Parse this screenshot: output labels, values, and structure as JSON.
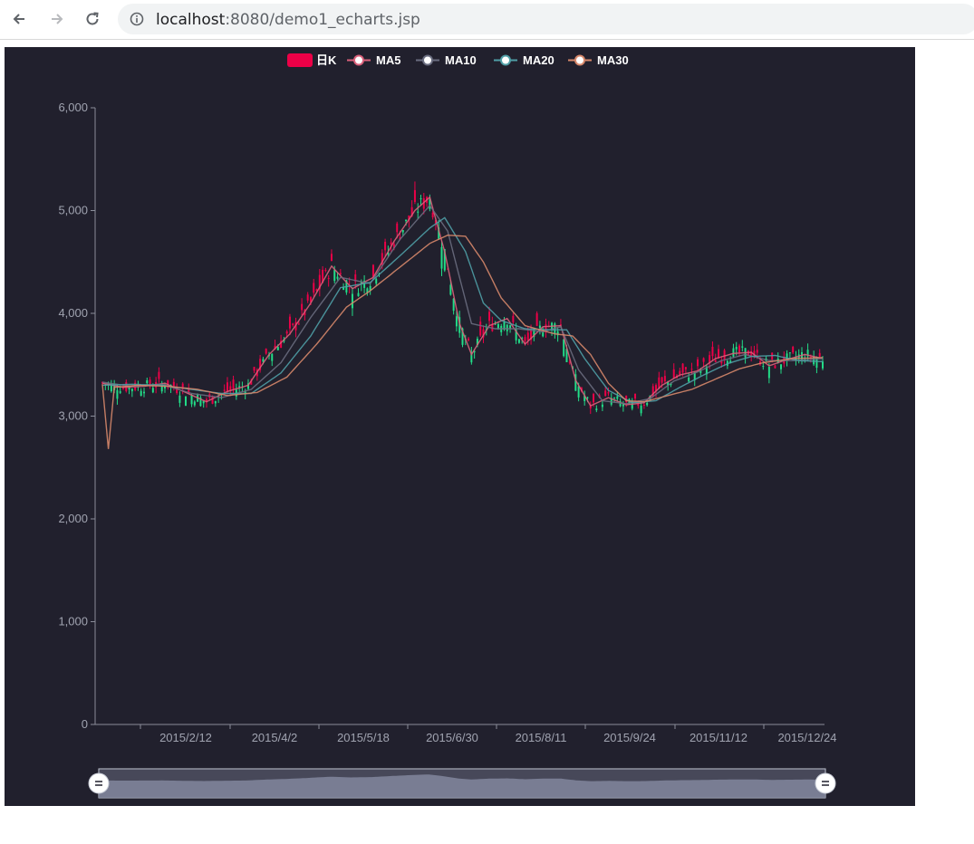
{
  "browser": {
    "back_icon": "arrow-left-icon",
    "forward_icon": "arrow-right-icon",
    "reload_icon": "reload-icon",
    "info_icon": "info-icon",
    "url_host": "localhost",
    "url_path": ":8080/demo1_echarts.jsp"
  },
  "colors": {
    "background": "#21202d",
    "candle_up": "#ec0047",
    "candle_down": "#22dd88",
    "ma5": "#d9607a",
    "ma10": "#6a6d80",
    "ma20": "#4f9ea6",
    "ma30": "#d6876a",
    "axis": "#8a8d99"
  },
  "chart_data": {
    "type": "line",
    "subtype": "candlestick",
    "legend": [
      "日K",
      "MA5",
      "MA10",
      "MA20",
      "MA30"
    ],
    "legend_position": "top-center",
    "x_tick_labels": [
      "2015/2/12",
      "2015/4/2",
      "2015/5/18",
      "2015/6/30",
      "2015/8/11",
      "2015/9/24",
      "2015/11/12",
      "2015/12/24"
    ],
    "y_tick_labels": [
      "0",
      "1,000",
      "2,000",
      "3,000",
      "4,000",
      "5,000",
      "6,000"
    ],
    "ylim": [
      0,
      6000
    ],
    "grid": false,
    "x_start": "2015/1/5",
    "x_end": "2015/12/31",
    "series": [
      {
        "name": "MA5",
        "key_points": [
          [
            0,
            3320
          ],
          [
            7,
            3280
          ],
          [
            14,
            3290
          ],
          [
            21,
            3320
          ],
          [
            28,
            3230
          ],
          [
            35,
            3140
          ],
          [
            42,
            3240
          ],
          [
            49,
            3300
          ],
          [
            56,
            3600
          ],
          [
            63,
            3800
          ],
          [
            70,
            4100
          ],
          [
            77,
            4460
          ],
          [
            84,
            4240
          ],
          [
            91,
            4350
          ],
          [
            98,
            4700
          ],
          [
            105,
            5000
          ],
          [
            110,
            5130
          ],
          [
            115,
            4600
          ],
          [
            120,
            3900
          ],
          [
            124,
            3600
          ],
          [
            130,
            3880
          ],
          [
            136,
            3950
          ],
          [
            142,
            3700
          ],
          [
            148,
            3870
          ],
          [
            154,
            3880
          ],
          [
            159,
            3350
          ],
          [
            164,
            3100
          ],
          [
            170,
            3180
          ],
          [
            176,
            3110
          ],
          [
            182,
            3130
          ],
          [
            188,
            3300
          ],
          [
            194,
            3400
          ],
          [
            200,
            3440
          ],
          [
            206,
            3560
          ],
          [
            212,
            3610
          ],
          [
            218,
            3620
          ],
          [
            224,
            3490
          ],
          [
            230,
            3550
          ],
          [
            236,
            3600
          ],
          [
            242,
            3560
          ]
        ]
      },
      {
        "name": "MA10",
        "key_points": [
          [
            0,
            3330
          ],
          [
            10,
            3290
          ],
          [
            20,
            3310
          ],
          [
            30,
            3220
          ],
          [
            40,
            3180
          ],
          [
            50,
            3260
          ],
          [
            60,
            3520
          ],
          [
            70,
            3960
          ],
          [
            80,
            4350
          ],
          [
            90,
            4290
          ],
          [
            100,
            4720
          ],
          [
            110,
            5050
          ],
          [
            116,
            4800
          ],
          [
            124,
            3900
          ],
          [
            132,
            3850
          ],
          [
            140,
            3850
          ],
          [
            148,
            3820
          ],
          [
            154,
            3870
          ],
          [
            160,
            3450
          ],
          [
            168,
            3150
          ],
          [
            176,
            3120
          ],
          [
            184,
            3170
          ],
          [
            192,
            3340
          ],
          [
            200,
            3430
          ],
          [
            208,
            3540
          ],
          [
            216,
            3600
          ],
          [
            224,
            3540
          ],
          [
            232,
            3540
          ],
          [
            242,
            3560
          ]
        ]
      },
      {
        "name": "MA20",
        "key_points": [
          [
            0,
            3300
          ],
          [
            10,
            3310
          ],
          [
            20,
            3300
          ],
          [
            30,
            3260
          ],
          [
            40,
            3220
          ],
          [
            50,
            3220
          ],
          [
            60,
            3420
          ],
          [
            70,
            3780
          ],
          [
            80,
            4250
          ],
          [
            90,
            4300
          ],
          [
            100,
            4560
          ],
          [
            110,
            4830
          ],
          [
            115,
            4930
          ],
          [
            122,
            4600
          ],
          [
            128,
            4100
          ],
          [
            134,
            3930
          ],
          [
            142,
            3850
          ],
          [
            150,
            3840
          ],
          [
            156,
            3840
          ],
          [
            162,
            3560
          ],
          [
            170,
            3250
          ],
          [
            178,
            3130
          ],
          [
            186,
            3150
          ],
          [
            194,
            3280
          ],
          [
            202,
            3400
          ],
          [
            210,
            3510
          ],
          [
            218,
            3580
          ],
          [
            226,
            3590
          ],
          [
            234,
            3540
          ],
          [
            242,
            3530
          ]
        ]
      },
      {
        "name": "MA30",
        "key_points": [
          [
            0,
            3310
          ],
          [
            2,
            2680
          ],
          [
            4,
            3280
          ],
          [
            12,
            3300
          ],
          [
            22,
            3290
          ],
          [
            32,
            3260
          ],
          [
            42,
            3200
          ],
          [
            52,
            3230
          ],
          [
            62,
            3380
          ],
          [
            72,
            3700
          ],
          [
            82,
            4060
          ],
          [
            90,
            4220
          ],
          [
            100,
            4450
          ],
          [
            110,
            4680
          ],
          [
            116,
            4760
          ],
          [
            122,
            4750
          ],
          [
            128,
            4500
          ],
          [
            134,
            4150
          ],
          [
            142,
            3880
          ],
          [
            152,
            3800
          ],
          [
            158,
            3780
          ],
          [
            164,
            3600
          ],
          [
            170,
            3320
          ],
          [
            176,
            3150
          ],
          [
            182,
            3140
          ],
          [
            190,
            3200
          ],
          [
            198,
            3260
          ],
          [
            206,
            3360
          ],
          [
            214,
            3460
          ],
          [
            222,
            3520
          ],
          [
            232,
            3560
          ],
          [
            242,
            3570
          ]
        ]
      }
    ]
  }
}
